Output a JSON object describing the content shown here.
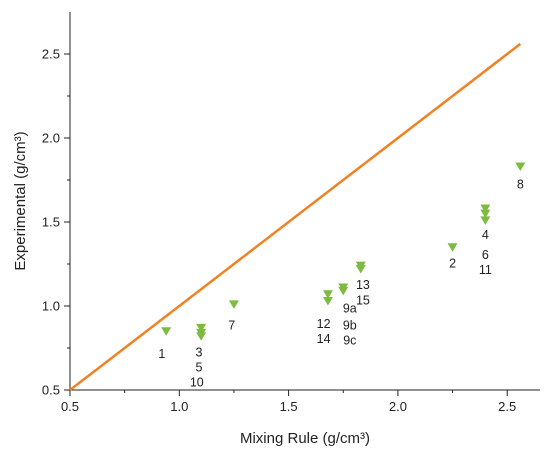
{
  "chart_data": {
    "type": "scatter",
    "title": "",
    "xlabel": "Mixing Rule (g/cm³)",
    "ylabel": "Experimental (g/cm³)",
    "xlim": [
      0.5,
      2.65
    ],
    "ylim": [
      0.5,
      2.75
    ],
    "x_ticks": [
      "0.5",
      "1.0",
      "1.5",
      "2.0",
      "2.5"
    ],
    "y_ticks": [
      "0.5",
      "1.0",
      "1.5",
      "2.0",
      "2.5"
    ],
    "grid": false,
    "legend": "none",
    "colors": {
      "marker": "#7cbb3f",
      "line": "#f08223",
      "axis": "#222222"
    },
    "reference_line": {
      "type": "y=x",
      "x": [
        0.5,
        2.56
      ],
      "y": [
        0.5,
        2.56
      ]
    },
    "series": [
      {
        "points": [
          {
            "x": 0.94,
            "y": 0.85
          },
          {
            "x": 1.1,
            "y": 0.87
          },
          {
            "x": 1.1,
            "y": 0.84
          },
          {
            "x": 1.1,
            "y": 0.82
          },
          {
            "x": 1.25,
            "y": 1.01
          },
          {
            "x": 1.68,
            "y": 1.07
          },
          {
            "x": 1.68,
            "y": 1.03
          },
          {
            "x": 1.75,
            "y": 1.11
          },
          {
            "x": 1.75,
            "y": 1.09
          },
          {
            "x": 1.83,
            "y": 1.24
          },
          {
            "x": 1.83,
            "y": 1.22
          },
          {
            "x": 2.25,
            "y": 1.35
          },
          {
            "x": 2.4,
            "y": 1.58
          },
          {
            "x": 2.4,
            "y": 1.55
          },
          {
            "x": 2.4,
            "y": 1.51
          },
          {
            "x": 2.56,
            "y": 1.83
          }
        ]
      }
    ],
    "annotations": [
      {
        "text": "1",
        "x": 0.92,
        "y": 0.69
      },
      {
        "text": "3",
        "x": 1.09,
        "y": 0.7
      },
      {
        "text": "5",
        "x": 1.09,
        "y": 0.61
      },
      {
        "text": "10",
        "x": 1.08,
        "y": 0.52
      },
      {
        "text": "7",
        "x": 1.24,
        "y": 0.86
      },
      {
        "text": "12",
        "x": 1.66,
        "y": 0.87
      },
      {
        "text": "14",
        "x": 1.66,
        "y": 0.78
      },
      {
        "text": "9a",
        "x": 1.78,
        "y": 0.96
      },
      {
        "text": "9b",
        "x": 1.78,
        "y": 0.86
      },
      {
        "text": "9c",
        "x": 1.78,
        "y": 0.77
      },
      {
        "text": "13",
        "x": 1.84,
        "y": 1.1
      },
      {
        "text": "15",
        "x": 1.84,
        "y": 1.01
      },
      {
        "text": "2",
        "x": 2.25,
        "y": 1.23
      },
      {
        "text": "4",
        "x": 2.4,
        "y": 1.4
      },
      {
        "text": "6",
        "x": 2.4,
        "y": 1.28
      },
      {
        "text": "11",
        "x": 2.4,
        "y": 1.19
      },
      {
        "text": "8",
        "x": 2.56,
        "y": 1.7
      }
    ]
  }
}
